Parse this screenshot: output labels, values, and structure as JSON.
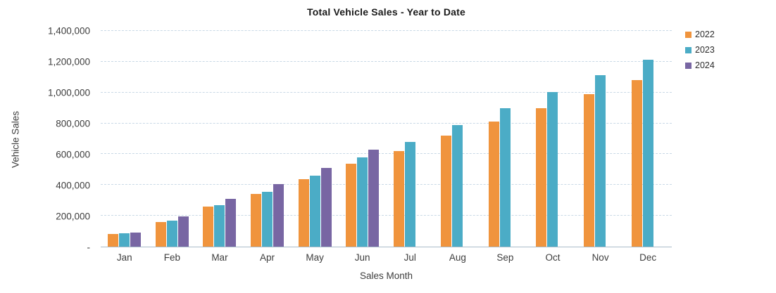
{
  "chart_data": {
    "type": "bar",
    "title": "Total Vehicle Sales - Year to Date",
    "xlabel": "Sales Month",
    "ylabel": "Vehicle Sales",
    "categories": [
      "Jan",
      "Feb",
      "Mar",
      "Apr",
      "May",
      "Jun",
      "Jul",
      "Aug",
      "Sep",
      "Oct",
      "Nov",
      "Dec"
    ],
    "series": [
      {
        "name": "2022",
        "color": "#F0943D",
        "values": [
          80000,
          160000,
          260000,
          340000,
          440000,
          540000,
          620000,
          720000,
          810000,
          900000,
          990000,
          1080000
        ]
      },
      {
        "name": "2023",
        "color": "#4BACC6",
        "values": [
          85000,
          170000,
          270000,
          355000,
          460000,
          580000,
          680000,
          790000,
          900000,
          1005000,
          1115000,
          1215000
        ]
      },
      {
        "name": "2024",
        "color": "#7866A3",
        "values": [
          90000,
          195000,
          310000,
          405000,
          510000,
          630000,
          null,
          null,
          null,
          null,
          null,
          null
        ]
      }
    ],
    "ylim": [
      0,
      1400000
    ],
    "ytick_step": 200000,
    "ytick_labels": [
      "-",
      "200,000",
      "400,000",
      "600,000",
      "800,000",
      "1,000,000",
      "1,200,000",
      "1,400,000"
    ],
    "grid": true,
    "legend_position": "top-right",
    "colors": {
      "gridline": "#c9d9e6",
      "axis_line": "#a8bcc9",
      "text": "#3d3d3d"
    }
  }
}
